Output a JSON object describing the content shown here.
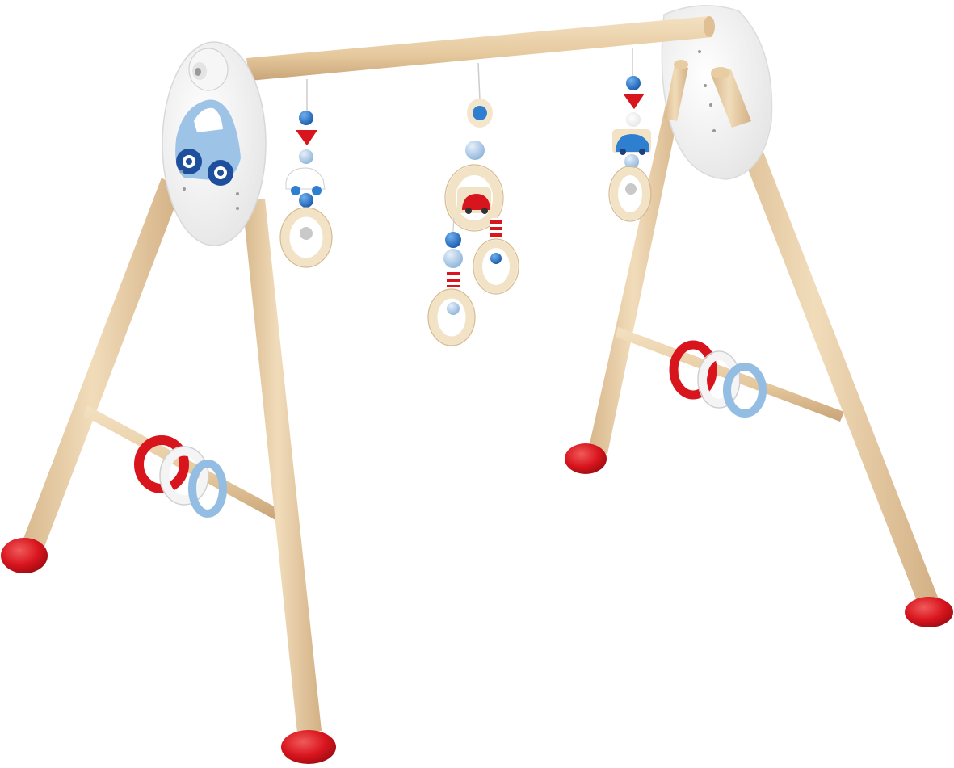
{
  "photo": {
    "subject": "wooden-baby-play-gym",
    "background_color": "#ffffff"
  },
  "palette": {
    "wood": "#e9cfa8",
    "wood_shade": "#d2b084",
    "wood_light": "#f3e2c6",
    "red": "#d8141d",
    "red_dark": "#a50e14",
    "blue": "#2f7fd0",
    "blue_dark": "#1e4f9c",
    "light_blue": "#9dc3e6",
    "panel_white": "#f2f2f2",
    "panel_edge": "#d9d9d9",
    "ring_cream": "#f6ead3"
  },
  "elements": {
    "rings_per_crossbar": 3,
    "ring_colors": [
      "red",
      "white",
      "light-blue"
    ],
    "hanging_toys": 3,
    "feet": 4,
    "side_panels": 2
  }
}
